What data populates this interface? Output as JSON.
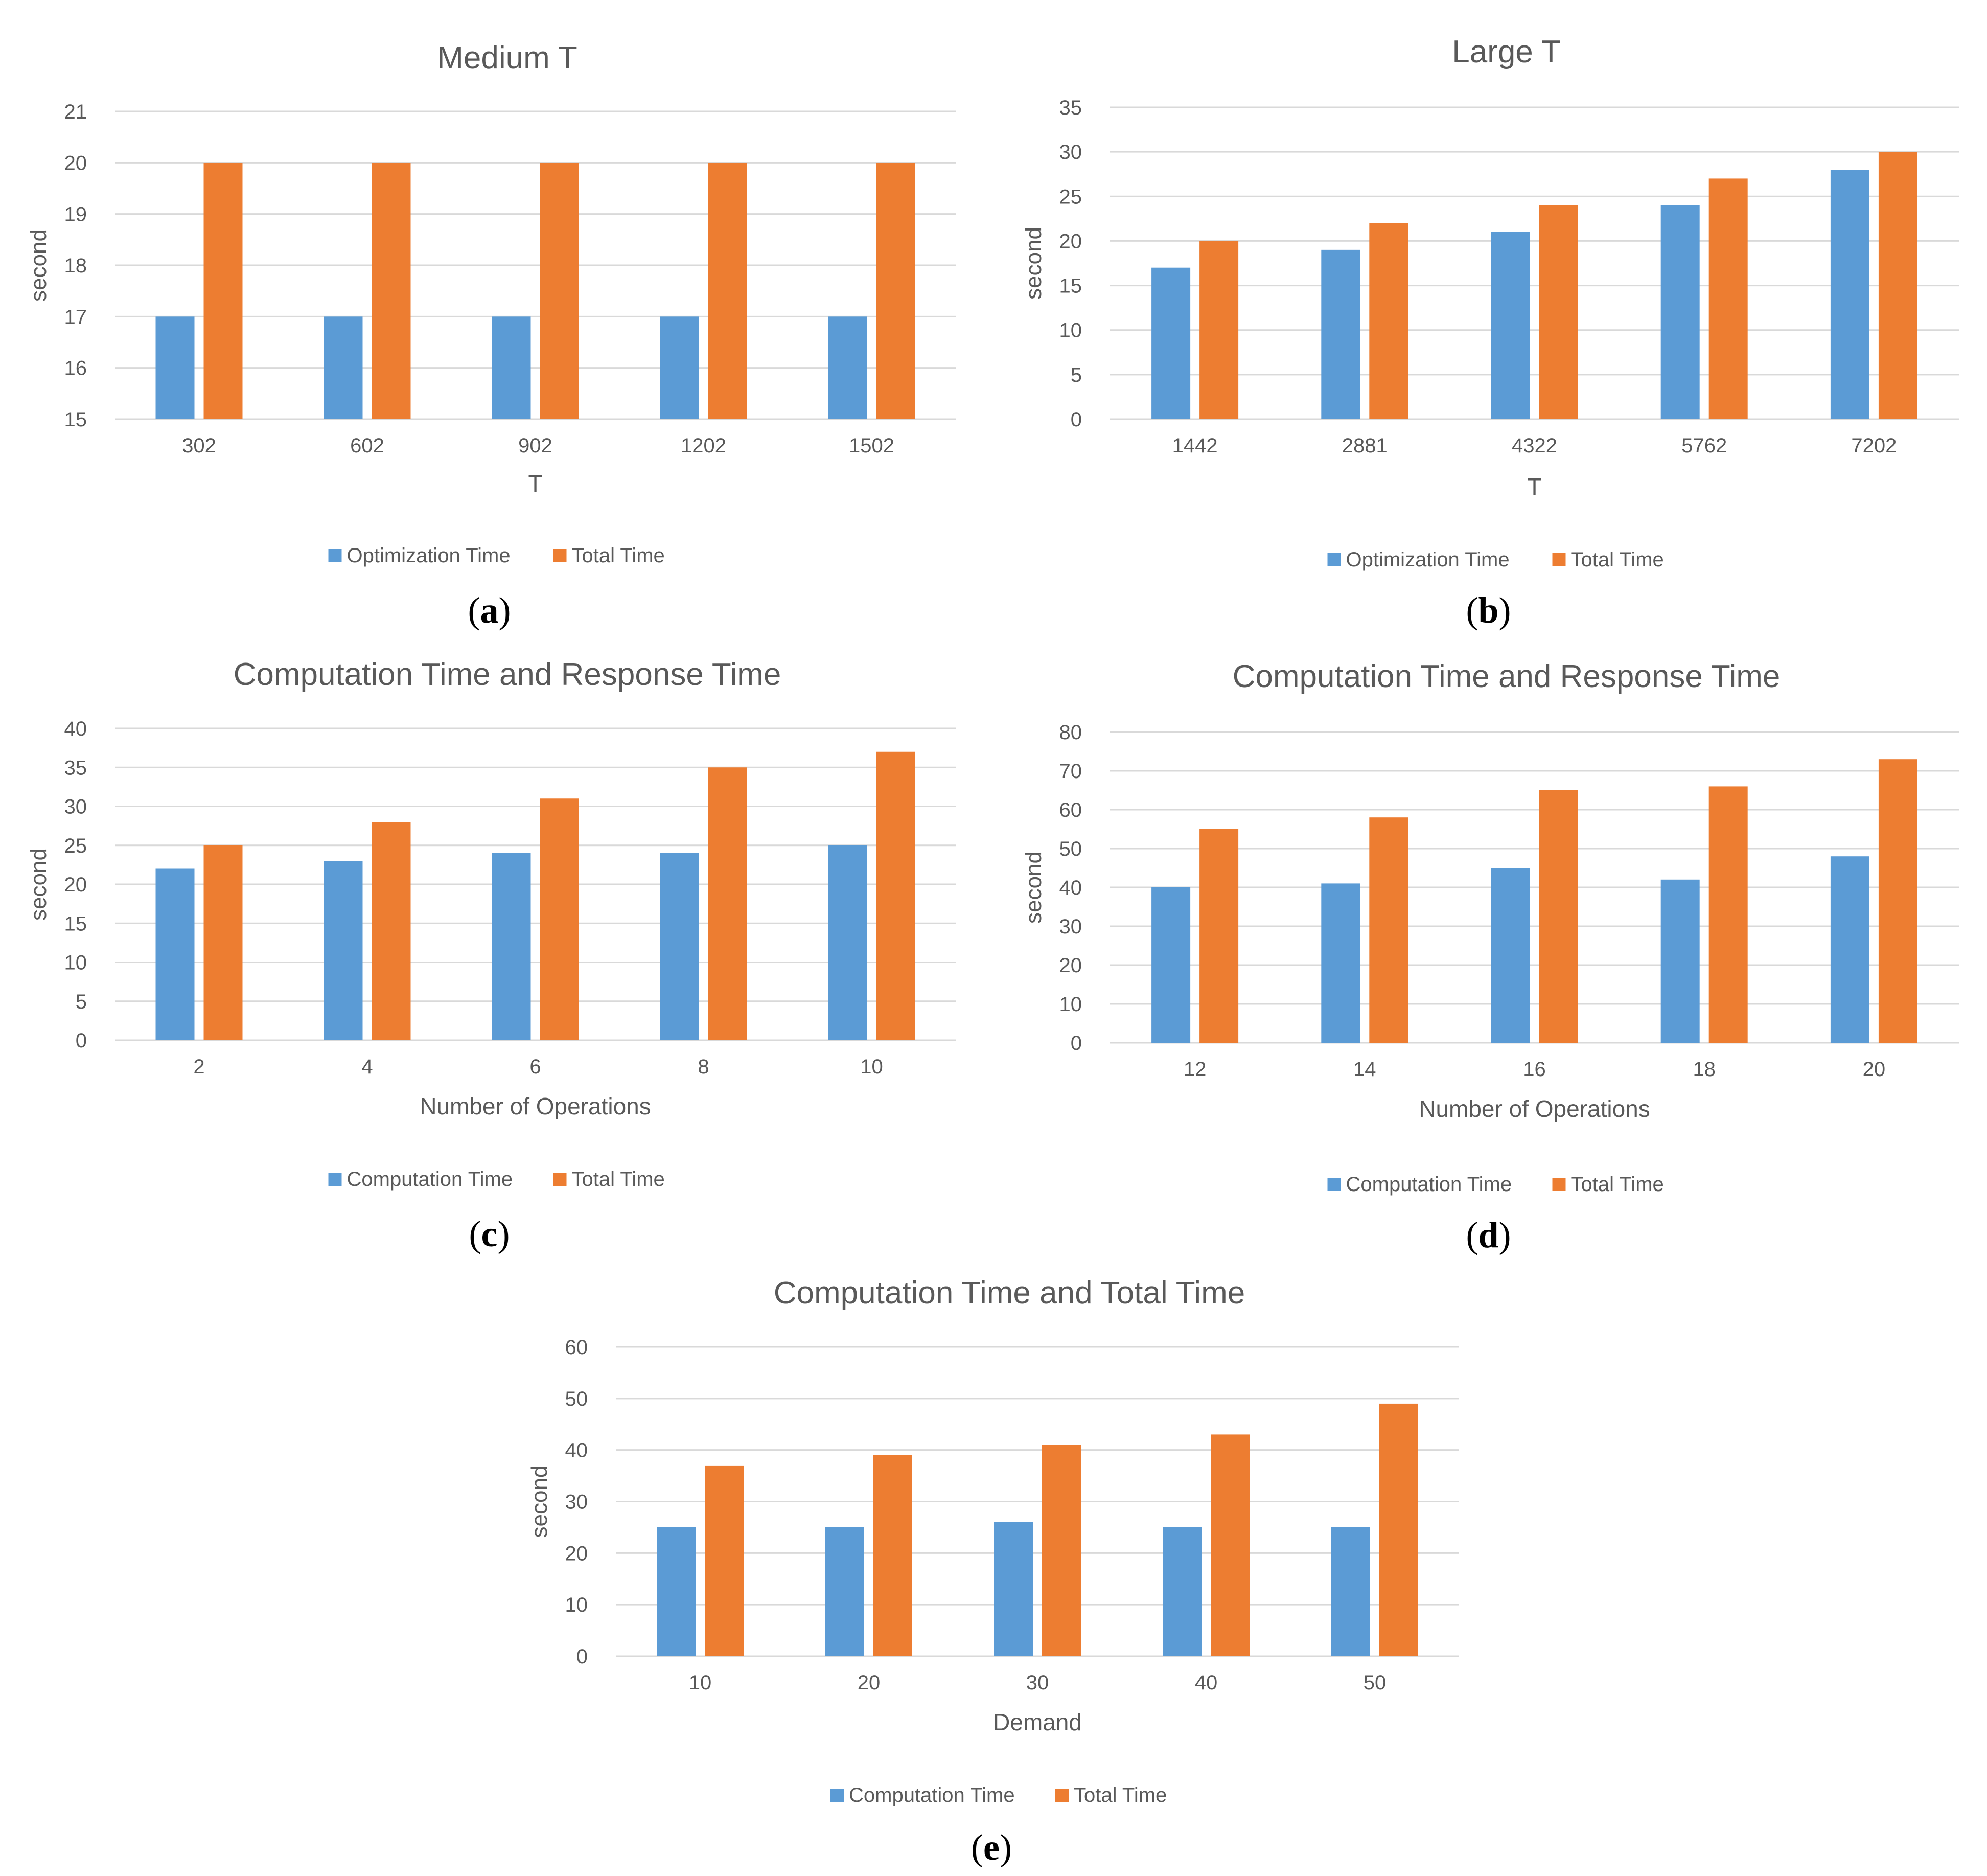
{
  "colors": {
    "series1": "#5b9bd5",
    "series2": "#ed7d31",
    "grid": "#d9d9d9",
    "text": "#595959",
    "title": "#595959",
    "caption": "#000000"
  },
  "chart_data": [
    {
      "panel": "(a)",
      "type": "bar",
      "title": "Medium T",
      "xlabel": "T",
      "ylabel": "second",
      "ylim": [
        15,
        21
      ],
      "ytick_step": 1,
      "grid": true,
      "legend": "bottom",
      "categories": [
        "302",
        "602",
        "902",
        "1202",
        "1502"
      ],
      "series": [
        {
          "name": "Optimization Time",
          "values": [
            17,
            17,
            17,
            17,
            17
          ]
        },
        {
          "name": "Total Time",
          "values": [
            20,
            20,
            20,
            20,
            20
          ]
        }
      ]
    },
    {
      "panel": "(b)",
      "type": "bar",
      "title": "Large T",
      "xlabel": "T",
      "ylabel": "second",
      "ylim": [
        0,
        35
      ],
      "ytick_step": 5,
      "grid": true,
      "legend": "bottom",
      "categories": [
        "1442",
        "2881",
        "4322",
        "5762",
        "7202"
      ],
      "series": [
        {
          "name": "Optimization Time",
          "values": [
            17,
            19,
            21,
            24,
            28
          ]
        },
        {
          "name": "Total Time",
          "values": [
            20,
            22,
            24,
            27,
            30
          ]
        }
      ]
    },
    {
      "panel": "(c)",
      "type": "bar",
      "title": "Computation Time and Response Time",
      "xlabel": "Number of Operations",
      "ylabel": "second",
      "ylim": [
        0,
        40
      ],
      "ytick_step": 5,
      "grid": true,
      "legend": "bottom",
      "categories": [
        "2",
        "4",
        "6",
        "8",
        "10"
      ],
      "series": [
        {
          "name": "Computation Time",
          "values": [
            22,
            23,
            24,
            24,
            25
          ]
        },
        {
          "name": "Total Time",
          "values": [
            25,
            28,
            31,
            35,
            37
          ]
        }
      ]
    },
    {
      "panel": "(d)",
      "type": "bar",
      "title": "Computation Time and Response Time",
      "xlabel": "Number of Operations",
      "ylabel": "second",
      "ylim": [
        0,
        80
      ],
      "ytick_step": 10,
      "grid": true,
      "legend": "bottom",
      "categories": [
        "12",
        "14",
        "16",
        "18",
        "20"
      ],
      "series": [
        {
          "name": "Computation Time",
          "values": [
            40,
            41,
            45,
            42,
            48
          ]
        },
        {
          "name": "Total Time",
          "values": [
            55,
            58,
            65,
            66,
            73
          ]
        }
      ]
    },
    {
      "panel": "(e)",
      "type": "bar",
      "title": "Computation Time and Total Time",
      "xlabel": "Demand",
      "ylabel": "second",
      "ylim": [
        0,
        60
      ],
      "ytick_step": 10,
      "grid": true,
      "legend": "bottom",
      "categories": [
        "10",
        "20",
        "30",
        "40",
        "50"
      ],
      "series": [
        {
          "name": "Computation Time",
          "values": [
            25,
            25,
            26,
            25,
            25
          ]
        },
        {
          "name": "Total Time",
          "values": [
            37,
            39,
            41,
            43,
            49
          ]
        }
      ]
    }
  ]
}
